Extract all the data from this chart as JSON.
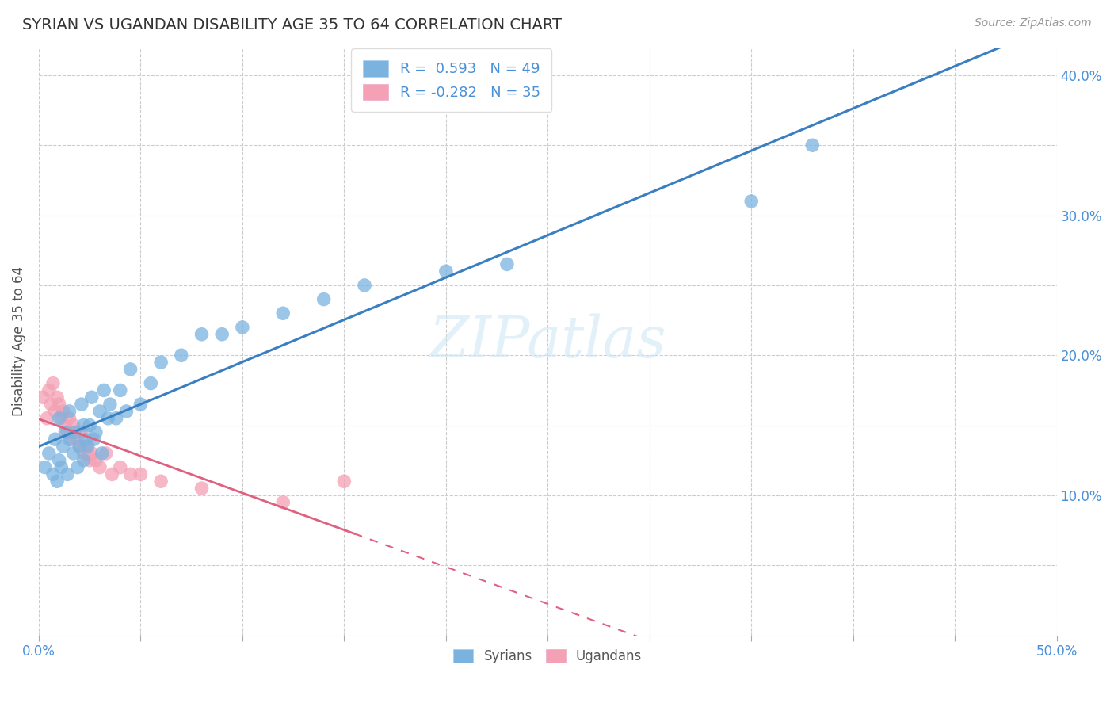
{
  "title": "SYRIAN VS UGANDAN DISABILITY AGE 35 TO 64 CORRELATION CHART",
  "source": "Source: ZipAtlas.com",
  "ylabel": "Disability Age 35 to 64",
  "xlim": [
    0.0,
    0.5
  ],
  "ylim": [
    0.0,
    0.42
  ],
  "xticks": [
    0.0,
    0.05,
    0.1,
    0.15,
    0.2,
    0.25,
    0.3,
    0.35,
    0.4,
    0.45,
    0.5
  ],
  "yticks": [
    0.0,
    0.05,
    0.1,
    0.15,
    0.2,
    0.25,
    0.3,
    0.35,
    0.4
  ],
  "syrian_R": 0.593,
  "syrian_N": 49,
  "ugandan_R": -0.282,
  "ugandan_N": 35,
  "syrian_color": "#7ab3e0",
  "ugandan_color": "#f4a0b5",
  "syrian_line_color": "#3a7fc1",
  "ugandan_line_color": "#e06080",
  "background_color": "#ffffff",
  "grid_color": "#cccccc",
  "watermark_color": "#d0e8f5",
  "syrian_x": [
    0.003,
    0.005,
    0.007,
    0.008,
    0.009,
    0.01,
    0.01,
    0.011,
    0.012,
    0.013,
    0.014,
    0.015,
    0.015,
    0.017,
    0.018,
    0.019,
    0.02,
    0.021,
    0.022,
    0.022,
    0.023,
    0.024,
    0.025,
    0.026,
    0.027,
    0.028,
    0.03,
    0.031,
    0.032,
    0.034,
    0.035,
    0.038,
    0.04,
    0.043,
    0.045,
    0.05,
    0.055,
    0.06,
    0.07,
    0.08,
    0.09,
    0.1,
    0.12,
    0.14,
    0.16,
    0.2,
    0.23,
    0.35,
    0.38
  ],
  "syrian_y": [
    0.12,
    0.13,
    0.115,
    0.14,
    0.11,
    0.125,
    0.155,
    0.12,
    0.135,
    0.145,
    0.115,
    0.14,
    0.16,
    0.13,
    0.145,
    0.12,
    0.135,
    0.165,
    0.125,
    0.15,
    0.14,
    0.135,
    0.15,
    0.17,
    0.14,
    0.145,
    0.16,
    0.13,
    0.175,
    0.155,
    0.165,
    0.155,
    0.175,
    0.16,
    0.19,
    0.165,
    0.18,
    0.195,
    0.2,
    0.215,
    0.215,
    0.22,
    0.23,
    0.24,
    0.25,
    0.26,
    0.265,
    0.31,
    0.35
  ],
  "ugandan_x": [
    0.002,
    0.004,
    0.005,
    0.006,
    0.007,
    0.008,
    0.009,
    0.01,
    0.011,
    0.012,
    0.013,
    0.014,
    0.015,
    0.016,
    0.017,
    0.018,
    0.019,
    0.02,
    0.021,
    0.022,
    0.023,
    0.024,
    0.025,
    0.026,
    0.028,
    0.03,
    0.033,
    0.036,
    0.04,
    0.045,
    0.05,
    0.06,
    0.08,
    0.12,
    0.15
  ],
  "ugandan_y": [
    0.17,
    0.155,
    0.175,
    0.165,
    0.18,
    0.16,
    0.17,
    0.165,
    0.155,
    0.16,
    0.15,
    0.145,
    0.155,
    0.14,
    0.15,
    0.145,
    0.14,
    0.135,
    0.145,
    0.13,
    0.135,
    0.13,
    0.125,
    0.13,
    0.125,
    0.12,
    0.13,
    0.115,
    0.12,
    0.115,
    0.115,
    0.11,
    0.105,
    0.095,
    0.11
  ]
}
